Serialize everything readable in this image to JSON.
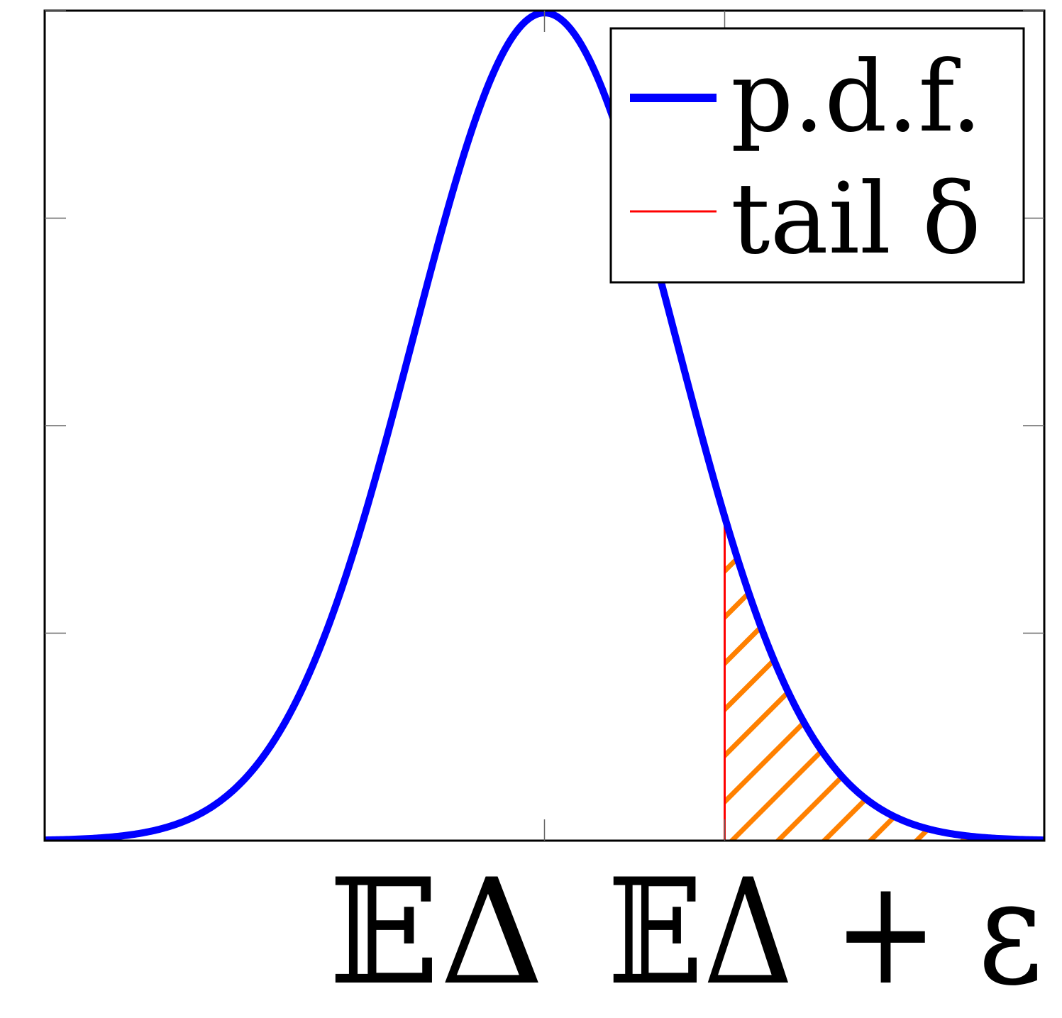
{
  "chart_data": {
    "type": "area",
    "title": "",
    "xlabel": "",
    "ylabel": "",
    "xlim": [
      -3.8,
      3.8
    ],
    "ylim": [
      0,
      0.4
    ],
    "grid": false,
    "series": [
      {
        "name": "p.d.f.",
        "kind": "normal-density",
        "mean": 0,
        "sd": 1,
        "color": "#0000ff"
      },
      {
        "name": "tail δ",
        "kind": "shaded-tail",
        "x_from": 1.37,
        "x_to": 3.8,
        "edge_color": "#ff0000",
        "hatch_color": "#ff8000"
      }
    ],
    "xticks": [
      {
        "x": 0,
        "label": "𝔼Δ"
      },
      {
        "x": 1.37,
        "label": "𝔼Δ + ε"
      }
    ],
    "legend": {
      "position": "top-right",
      "entries": [
        {
          "label": "p.d.f.",
          "color": "#0000ff"
        },
        {
          "label": "tail δ",
          "color": "#ff0000"
        }
      ]
    }
  }
}
